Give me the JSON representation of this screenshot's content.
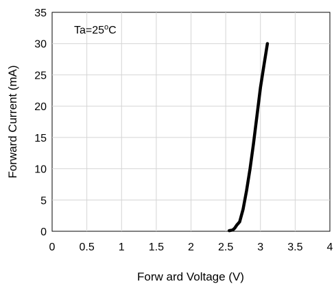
{
  "chart_data": {
    "type": "line",
    "title": "",
    "xlabel": "Forw ard Voltage  (V)",
    "ylabel": "Forward Current  (mA)",
    "annotation": {
      "prefix": "Ta=25",
      "superscript": "o",
      "suffix": "C"
    },
    "xlim": [
      0,
      4
    ],
    "ylim": [
      0,
      35
    ],
    "x_ticks": [
      "0",
      "0.5",
      "1",
      "1.5",
      "2",
      "2.5",
      "3",
      "3.5",
      "4"
    ],
    "y_ticks": [
      "0",
      "5",
      "10",
      "15",
      "20",
      "25",
      "30",
      "35"
    ],
    "grid": true,
    "series": [
      {
        "color": "#000000",
        "x": [
          2.55,
          2.6,
          2.63,
          2.66,
          2.7,
          2.75,
          2.8,
          2.85,
          2.9,
          2.95,
          3.0,
          3.05,
          3.1
        ],
        "y": [
          0.1,
          0.2,
          0.5,
          1.0,
          1.5,
          3.5,
          6.5,
          10.0,
          14.0,
          18.5,
          23.0,
          26.5,
          30.0
        ]
      }
    ]
  }
}
